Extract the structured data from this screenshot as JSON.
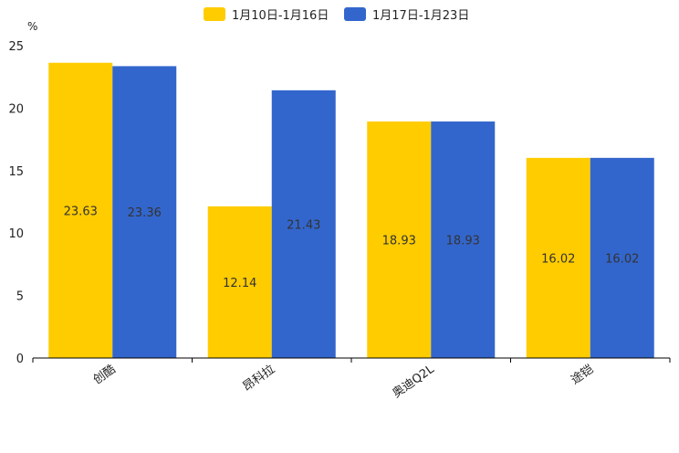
{
  "chart_data": {
    "type": "bar",
    "title": "",
    "xlabel": "",
    "ylabel": "%",
    "ylim": [
      0,
      25
    ],
    "yticks": [
      0,
      5,
      10,
      15,
      20,
      25
    ],
    "grid": false,
    "legend_position": "top-center",
    "categories": [
      "创酷",
      "昂科拉",
      "奥迪Q2L",
      "途铠"
    ],
    "series": [
      {
        "name": "1月10日-1月16日",
        "color": "#ffcc00",
        "values": [
          23.63,
          12.14,
          18.93,
          16.02
        ]
      },
      {
        "name": "1月17日-1月23日",
        "color": "#3366cc",
        "values": [
          23.36,
          21.43,
          18.93,
          16.02
        ]
      }
    ]
  }
}
